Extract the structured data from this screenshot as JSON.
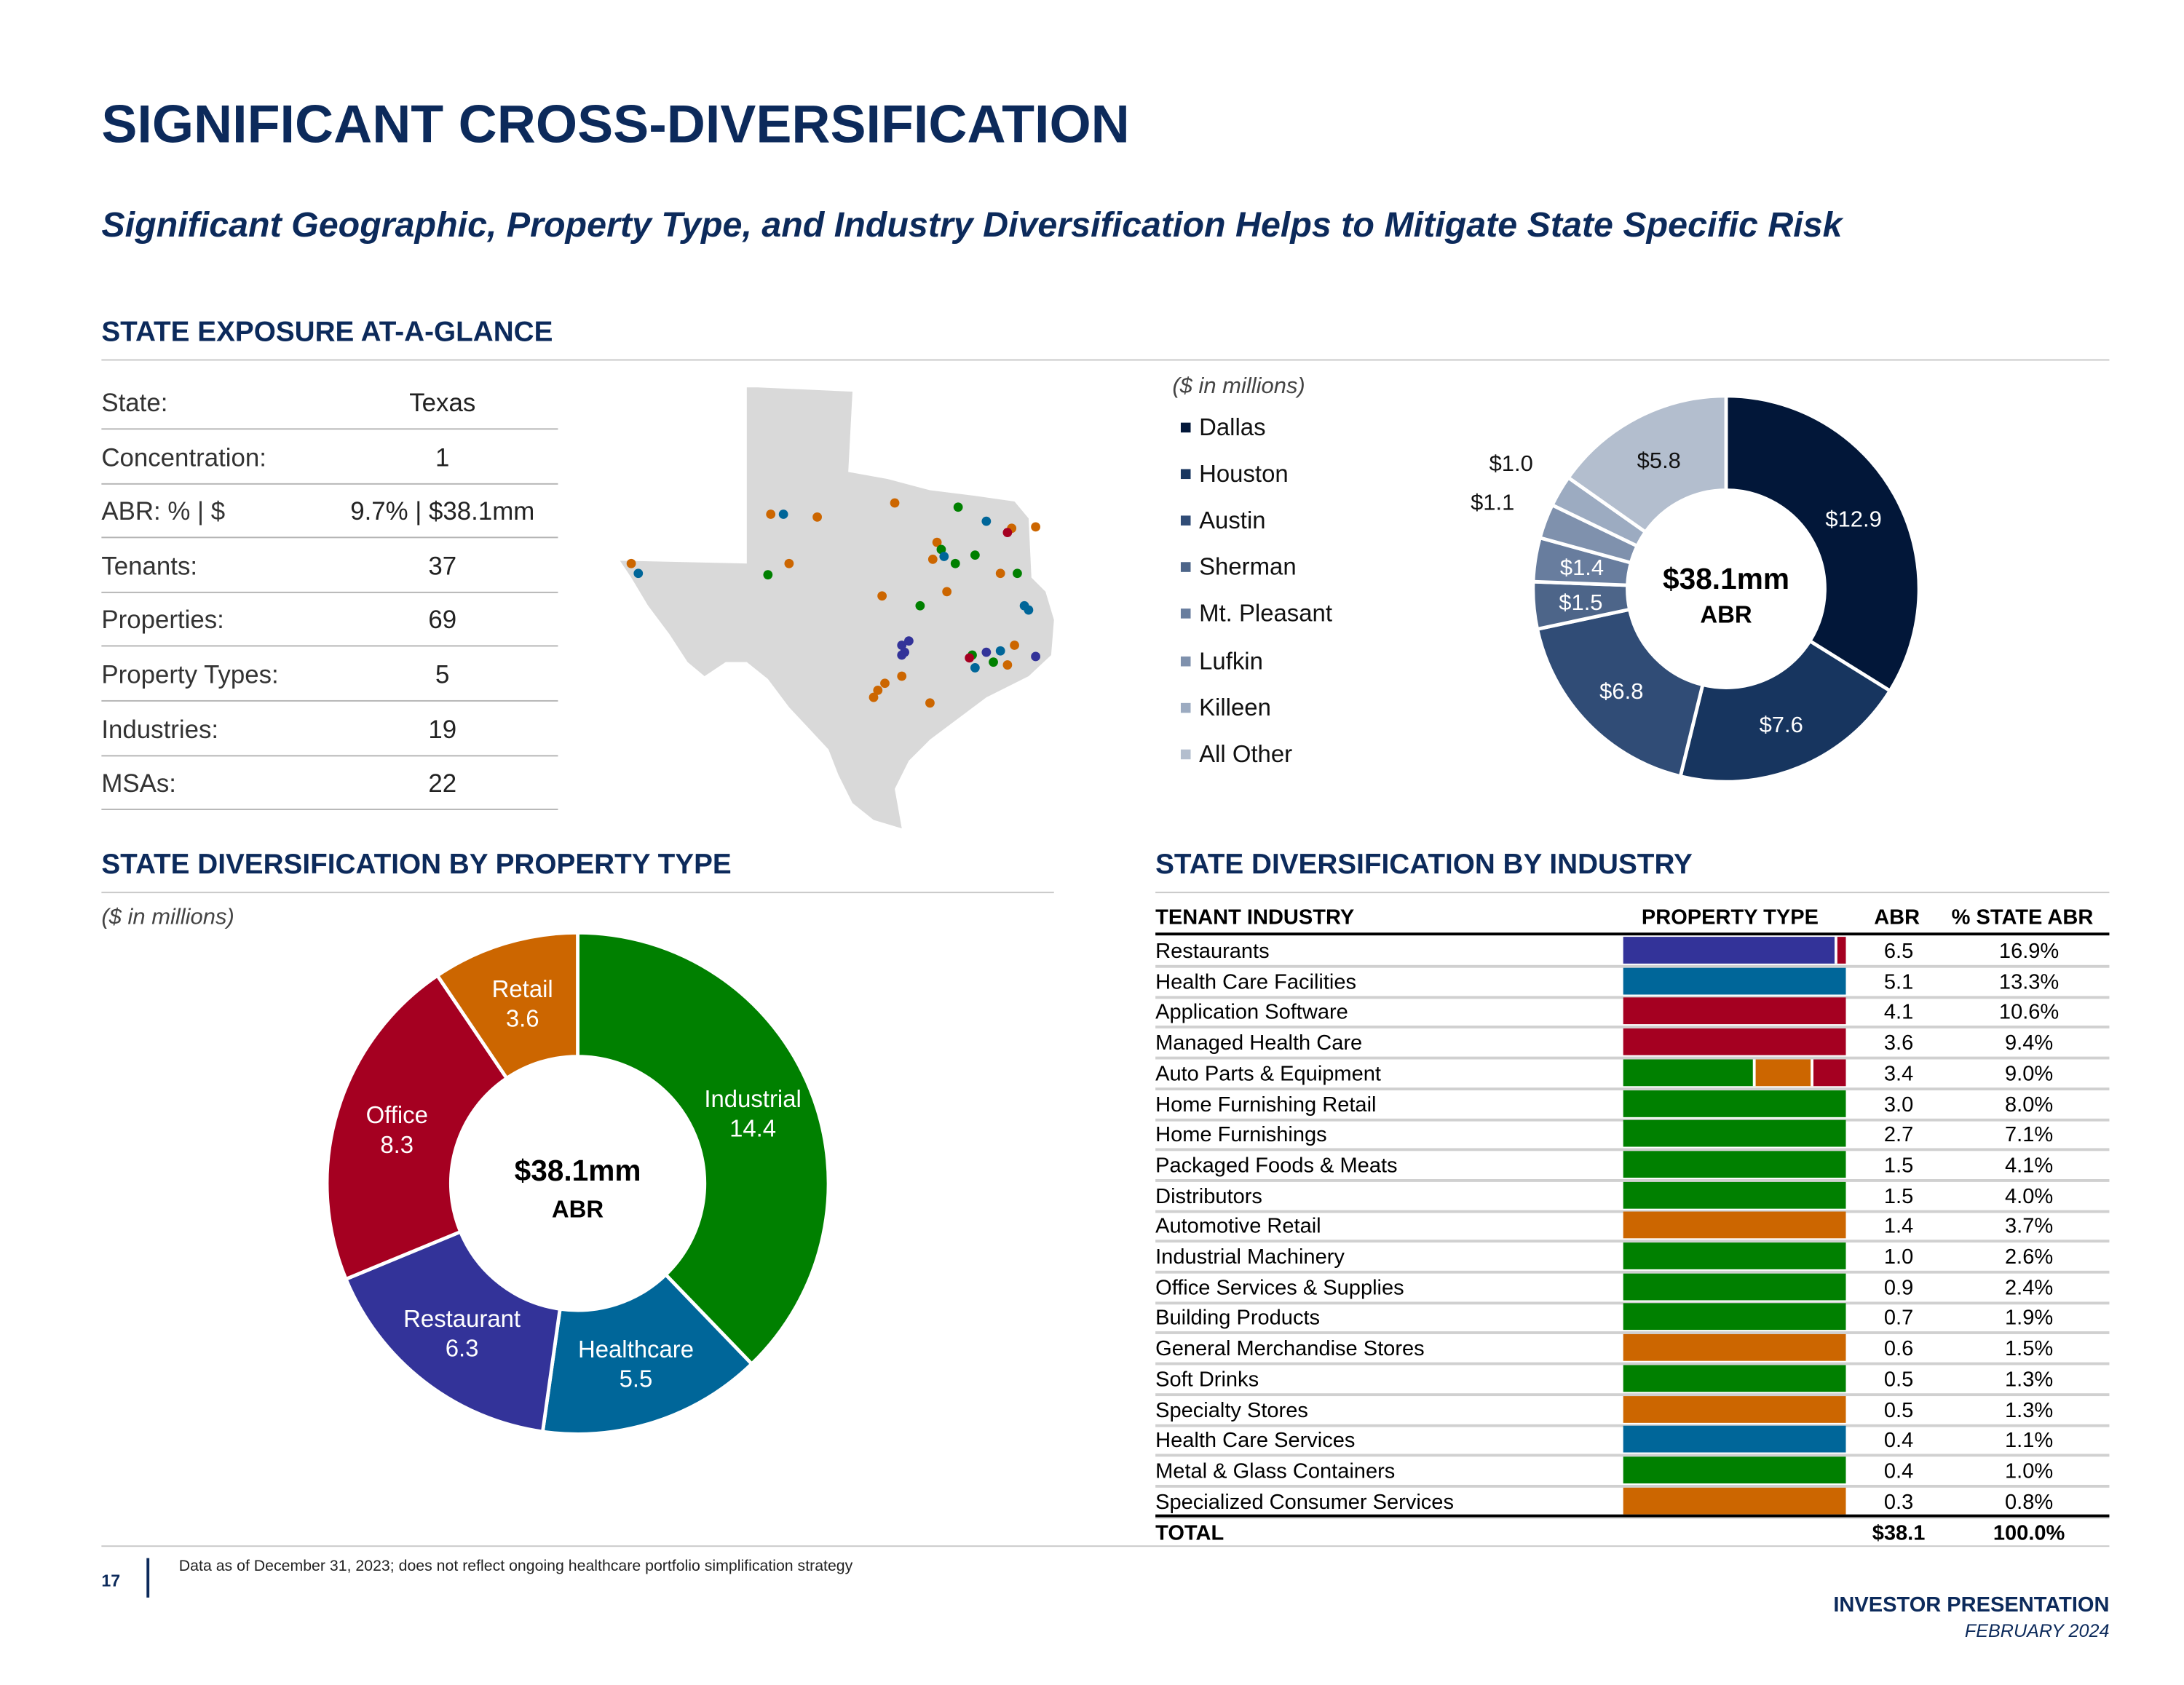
{
  "title": "SIGNIFICANT CROSS-DIVERSIFICATION",
  "subtitle": "Significant Geographic, Property Type, and Industry Diversification Helps to Mitigate State Specific Risk",
  "exposure": {
    "heading": "STATE EXPOSURE AT-A-GLANCE",
    "rows": [
      {
        "label": "State:",
        "value": "Texas"
      },
      {
        "label": "Concentration:",
        "value": "1"
      },
      {
        "label": "ABR: % | $",
        "value": "9.7% | $38.1mm"
      },
      {
        "label": "Tenants:",
        "value": "37"
      },
      {
        "label": "Properties:",
        "value": "69"
      },
      {
        "label": "Property Types:",
        "value": "5"
      },
      {
        "label": "Industries:",
        "value": "19"
      },
      {
        "label": "MSAs:",
        "value": "22"
      }
    ]
  },
  "chart_data": [
    {
      "type": "pie",
      "subtitle": "($ in millions)",
      "center_label": "$38.1mm",
      "center_sublabel": "ABR",
      "categories": [
        "Dallas",
        "Houston",
        "Austin",
        "Sherman",
        "Mt. Pleasant",
        "Lufkin",
        "Killeen",
        "All Other"
      ],
      "values": [
        12.9,
        7.6,
        6.8,
        1.5,
        1.4,
        1.1,
        1.0,
        5.8
      ],
      "labels": [
        "$12.9",
        "$7.6",
        "$6.8",
        "$1.5",
        "$1.4",
        "$1.1",
        "$1.0",
        "$5.8"
      ],
      "colors": [
        "#021739",
        "#17355f",
        "#304c76",
        "#4d6589",
        "#687d9e",
        "#7f91ad",
        "#9cabc1",
        "#b3bece"
      ],
      "legend": "left"
    },
    {
      "type": "pie",
      "title": "STATE DIVERSIFICATION BY PROPERTY TYPE",
      "subtitle": "($ in millions)",
      "center_label": "$38.1mm",
      "center_sublabel": "ABR",
      "categories": [
        "Industrial",
        "Healthcare",
        "Restaurant",
        "Office",
        "Retail"
      ],
      "values": [
        14.4,
        5.5,
        6.3,
        8.3,
        3.6
      ],
      "labels": [
        "14.4",
        "5.5",
        "6.3",
        "8.3",
        "3.6"
      ],
      "colors": [
        "#008000",
        "#006699",
        "#333399",
        "#a50021",
        "#cc6600"
      ]
    }
  ],
  "industry": {
    "heading": "STATE DIVERSIFICATION BY INDUSTRY",
    "columns": [
      "TENANT INDUSTRY",
      "PROPERTY TYPE",
      "ABR",
      "% STATE ABR"
    ],
    "rows": [
      {
        "name": "Restaurants",
        "abr": "6.5",
        "pct": "16.9%",
        "mix": [
          [
            "Restaurant",
            0.96
          ],
          [
            "Office",
            0.04
          ]
        ]
      },
      {
        "name": "Health Care Facilities",
        "abr": "5.1",
        "pct": "13.3%",
        "mix": [
          [
            "Healthcare",
            1
          ]
        ]
      },
      {
        "name": "Application Software",
        "abr": "4.1",
        "pct": "10.6%",
        "mix": [
          [
            "Office",
            1
          ]
        ]
      },
      {
        "name": "Managed Health Care",
        "abr": "3.6",
        "pct": "9.4%",
        "mix": [
          [
            "Office",
            1
          ]
        ]
      },
      {
        "name": "Auto Parts & Equipment",
        "abr": "3.4",
        "pct": "9.0%",
        "mix": [
          [
            "Industrial",
            0.6
          ],
          [
            "Retail",
            0.25
          ],
          [
            "Office",
            0.15
          ]
        ]
      },
      {
        "name": "Home Furnishing Retail",
        "abr": "3.0",
        "pct": "8.0%",
        "mix": [
          [
            "Industrial",
            1
          ]
        ]
      },
      {
        "name": "Home Furnishings",
        "abr": "2.7",
        "pct": "7.1%",
        "mix": [
          [
            "Industrial",
            1
          ]
        ]
      },
      {
        "name": "Packaged Foods & Meats",
        "abr": "1.5",
        "pct": "4.1%",
        "mix": [
          [
            "Industrial",
            1
          ]
        ]
      },
      {
        "name": "Distributors",
        "abr": "1.5",
        "pct": "4.0%",
        "mix": [
          [
            "Industrial",
            1
          ]
        ]
      },
      {
        "name": "Automotive Retail",
        "abr": "1.4",
        "pct": "3.7%",
        "mix": [
          [
            "Retail",
            1
          ]
        ]
      },
      {
        "name": "Industrial Machinery",
        "abr": "1.0",
        "pct": "2.6%",
        "mix": [
          [
            "Industrial",
            1
          ]
        ]
      },
      {
        "name": "Office Services & Supplies",
        "abr": "0.9",
        "pct": "2.4%",
        "mix": [
          [
            "Industrial",
            1
          ]
        ]
      },
      {
        "name": "Building Products",
        "abr": "0.7",
        "pct": "1.9%",
        "mix": [
          [
            "Industrial",
            1
          ]
        ]
      },
      {
        "name": "General Merchandise Stores",
        "abr": "0.6",
        "pct": "1.5%",
        "mix": [
          [
            "Retail",
            1
          ]
        ]
      },
      {
        "name": "Soft Drinks",
        "abr": "0.5",
        "pct": "1.3%",
        "mix": [
          [
            "Industrial",
            1
          ]
        ]
      },
      {
        "name": "Specialty Stores",
        "abr": "0.5",
        "pct": "1.3%",
        "mix": [
          [
            "Retail",
            1
          ]
        ]
      },
      {
        "name": "Health Care Services",
        "abr": "0.4",
        "pct": "1.1%",
        "mix": [
          [
            "Healthcare",
            1
          ]
        ]
      },
      {
        "name": "Metal & Glass Containers",
        "abr": "0.4",
        "pct": "1.0%",
        "mix": [
          [
            "Industrial",
            1
          ]
        ]
      },
      {
        "name": "Specialized Consumer Services",
        "abr": "0.3",
        "pct": "0.8%",
        "mix": [
          [
            "Retail",
            1
          ]
        ]
      }
    ],
    "total": {
      "label": "TOTAL",
      "abr": "$38.1",
      "pct": "100.0%"
    }
  },
  "footer": {
    "page": "17",
    "note": "Data as of December 31, 2023; does not reflect ongoing healthcare portfolio simplification strategy",
    "brand": "INVESTOR PRESENTATION",
    "date": "FEBRUARY 2024"
  }
}
